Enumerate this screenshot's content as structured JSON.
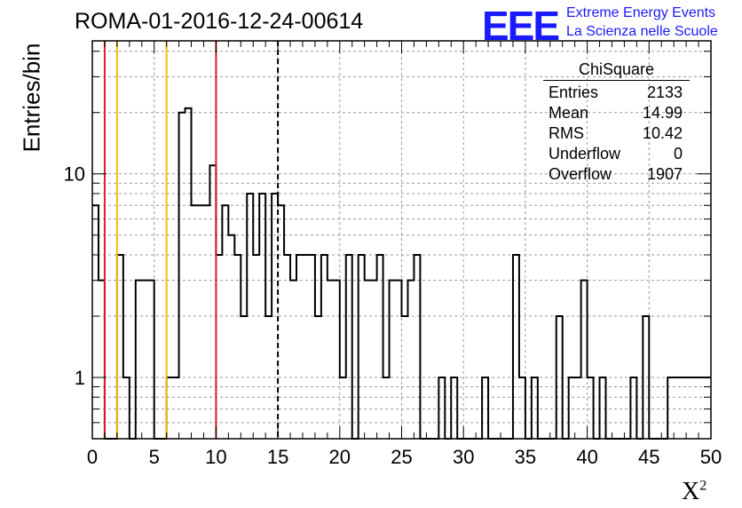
{
  "header": {
    "title": "ROMA-01-2016-12-24-00614",
    "logo_mark": "EEE",
    "logo_line1": "Extreme Energy Events",
    "logo_line2": "La Scienza nelle Scuole"
  },
  "stats": {
    "title": "ChiSquare",
    "rows": [
      {
        "label": "Entries",
        "value": "2133"
      },
      {
        "label": "Mean",
        "value": "14.99"
      },
      {
        "label": "RMS",
        "value": "10.42"
      },
      {
        "label": "Underflow",
        "value": "0"
      },
      {
        "label": "Overflow",
        "value": "1907"
      }
    ]
  },
  "chart_data": {
    "type": "histogram",
    "xlabel": "X",
    "xlabel_sup": "2",
    "ylabel": "Entries/bin",
    "xlim": [
      0,
      50
    ],
    "ylim": [
      0.5,
      45
    ],
    "yscale": "log",
    "grid": true,
    "bin_width": 0.5,
    "x_ticks": [
      0,
      5,
      10,
      15,
      20,
      25,
      30,
      35,
      40,
      45,
      50
    ],
    "y_ticks": [
      1,
      10
    ],
    "counts": [
      7,
      3,
      0,
      0,
      4,
      1,
      0,
      3,
      3,
      3,
      0,
      0,
      1,
      1,
      20,
      21,
      7,
      7,
      7,
      11,
      4,
      7,
      5,
      4,
      2,
      8,
      4,
      8,
      2,
      8,
      7,
      4,
      3,
      4,
      4,
      4,
      2,
      4,
      3,
      3,
      1,
      4,
      0,
      4,
      3,
      3,
      4,
      1,
      3,
      3,
      2,
      3,
      4,
      0,
      0,
      0,
      1,
      0,
      1,
      0,
      0,
      0,
      0,
      1,
      0,
      0,
      0,
      0,
      4,
      1,
      0,
      1,
      0,
      0,
      0,
      2,
      0,
      1,
      1,
      3,
      1,
      0,
      1,
      0,
      0,
      0,
      0,
      1,
      0,
      2,
      0,
      0,
      0,
      1,
      1,
      1,
      1,
      1,
      1,
      1
    ],
    "vertical_lines": [
      {
        "x": 1,
        "color": "#d42020",
        "style": "solid"
      },
      {
        "x": 10,
        "color": "#d42020",
        "style": "solid"
      },
      {
        "x": 2,
        "color": "#f0c000",
        "style": "solid"
      },
      {
        "x": 6,
        "color": "#f0c000",
        "style": "solid"
      },
      {
        "x": 15,
        "color": "#000000",
        "style": "dashed"
      }
    ]
  }
}
